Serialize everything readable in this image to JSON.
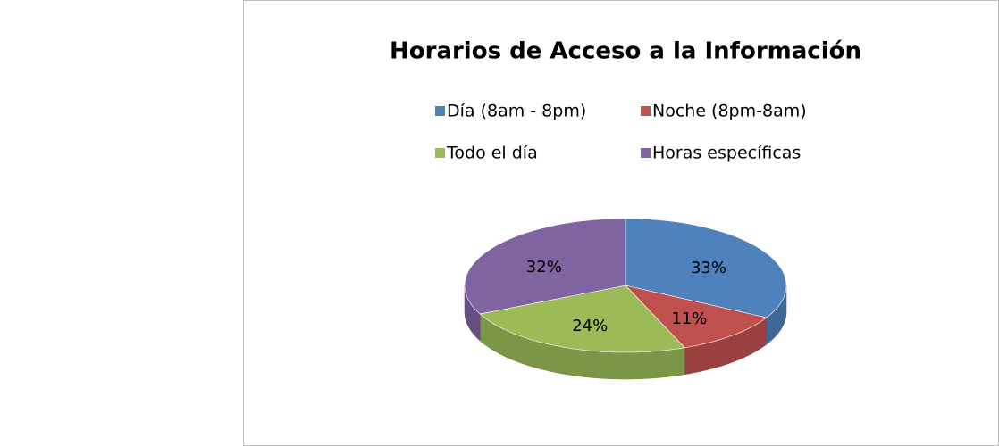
{
  "chart_data": {
    "type": "pie",
    "title": "Horarios de Acceso a la Información",
    "categories": [
      "Día (8am - 8pm)",
      "Noche (8pm-8am)",
      "Todo el día",
      "Horas específicas"
    ],
    "values": [
      33,
      11,
      24,
      32
    ],
    "value_labels": [
      "33%",
      "11%",
      "24%",
      "32%"
    ],
    "colors": [
      "#4f81bd",
      "#c0504d",
      "#9bbb59",
      "#8064a2"
    ]
  }
}
